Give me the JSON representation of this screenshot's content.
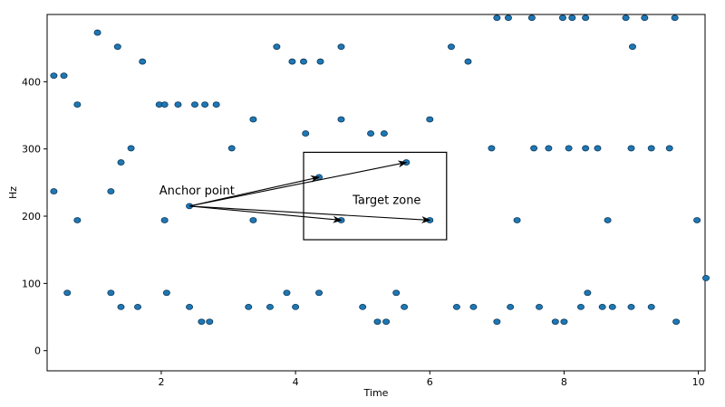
{
  "chart_data": {
    "type": "scatter",
    "title": "",
    "xlabel": "Time",
    "ylabel": "Hz",
    "xlim": [
      0.3,
      10.1
    ],
    "ylim": [
      -30,
      500
    ],
    "x_ticks": [
      2,
      4,
      6,
      8,
      10
    ],
    "y_ticks": [
      0,
      100,
      200,
      300,
      400
    ],
    "grid": false,
    "legend": "none",
    "point_color": "#1f77b4",
    "point_edge_color": "#0d3a5c",
    "points": [
      {
        "x": 0.4,
        "y": 409
      },
      {
        "x": 0.4,
        "y": 237
      },
      {
        "x": 0.55,
        "y": 409
      },
      {
        "x": 0.6,
        "y": 86
      },
      {
        "x": 0.75,
        "y": 366
      },
      {
        "x": 0.75,
        "y": 194
      },
      {
        "x": 1.05,
        "y": 473
      },
      {
        "x": 1.25,
        "y": 237
      },
      {
        "x": 1.25,
        "y": 86
      },
      {
        "x": 1.35,
        "y": 452
      },
      {
        "x": 1.4,
        "y": 280
      },
      {
        "x": 1.4,
        "y": 65
      },
      {
        "x": 1.55,
        "y": 301
      },
      {
        "x": 1.65,
        "y": 65
      },
      {
        "x": 1.72,
        "y": 430
      },
      {
        "x": 1.97,
        "y": 366
      },
      {
        "x": 2.05,
        "y": 366
      },
      {
        "x": 2.05,
        "y": 194
      },
      {
        "x": 2.08,
        "y": 86
      },
      {
        "x": 2.25,
        "y": 366
      },
      {
        "x": 2.42,
        "y": 215
      },
      {
        "x": 2.42,
        "y": 65
      },
      {
        "x": 2.5,
        "y": 366
      },
      {
        "x": 2.6,
        "y": 43
      },
      {
        "x": 2.65,
        "y": 366
      },
      {
        "x": 2.72,
        "y": 43
      },
      {
        "x": 2.82,
        "y": 366
      },
      {
        "x": 3.05,
        "y": 301
      },
      {
        "x": 3.3,
        "y": 65
      },
      {
        "x": 3.37,
        "y": 344
      },
      {
        "x": 3.37,
        "y": 194
      },
      {
        "x": 3.62,
        "y": 65
      },
      {
        "x": 3.72,
        "y": 452
      },
      {
        "x": 3.87,
        "y": 86
      },
      {
        "x": 3.95,
        "y": 430
      },
      {
        "x": 4.0,
        "y": 65
      },
      {
        "x": 4.12,
        "y": 430
      },
      {
        "x": 4.15,
        "y": 323
      },
      {
        "x": 4.35,
        "y": 258
      },
      {
        "x": 4.35,
        "y": 86
      },
      {
        "x": 4.37,
        "y": 430
      },
      {
        "x": 4.68,
        "y": 452
      },
      {
        "x": 4.68,
        "y": 344
      },
      {
        "x": 4.68,
        "y": 194
      },
      {
        "x": 5.0,
        "y": 65
      },
      {
        "x": 5.12,
        "y": 323
      },
      {
        "x": 5.22,
        "y": 43
      },
      {
        "x": 5.32,
        "y": 323
      },
      {
        "x": 5.35,
        "y": 43
      },
      {
        "x": 5.5,
        "y": 86
      },
      {
        "x": 5.62,
        "y": 65
      },
      {
        "x": 5.65,
        "y": 280
      },
      {
        "x": 6.0,
        "y": 344
      },
      {
        "x": 6.0,
        "y": 194
      },
      {
        "x": 6.32,
        "y": 452
      },
      {
        "x": 6.4,
        "y": 65
      },
      {
        "x": 6.57,
        "y": 430
      },
      {
        "x": 6.65,
        "y": 65
      },
      {
        "x": 6.92,
        "y": 301
      },
      {
        "x": 7.0,
        "y": 495
      },
      {
        "x": 7.0,
        "y": 43
      },
      {
        "x": 7.17,
        "y": 495
      },
      {
        "x": 7.2,
        "y": 65
      },
      {
        "x": 7.3,
        "y": 194
      },
      {
        "x": 7.52,
        "y": 495
      },
      {
        "x": 7.55,
        "y": 301
      },
      {
        "x": 7.63,
        "y": 65
      },
      {
        "x": 7.77,
        "y": 301
      },
      {
        "x": 7.87,
        "y": 43
      },
      {
        "x": 7.98,
        "y": 495
      },
      {
        "x": 8.0,
        "y": 43
      },
      {
        "x": 8.07,
        "y": 301
      },
      {
        "x": 8.12,
        "y": 495
      },
      {
        "x": 8.25,
        "y": 65
      },
      {
        "x": 8.32,
        "y": 495
      },
      {
        "x": 8.32,
        "y": 301
      },
      {
        "x": 8.35,
        "y": 86
      },
      {
        "x": 8.5,
        "y": 301
      },
      {
        "x": 8.57,
        "y": 65
      },
      {
        "x": 8.65,
        "y": 194
      },
      {
        "x": 8.72,
        "y": 65
      },
      {
        "x": 8.92,
        "y": 495
      },
      {
        "x": 9.0,
        "y": 301
      },
      {
        "x": 9.0,
        "y": 65
      },
      {
        "x": 9.02,
        "y": 452
      },
      {
        "x": 9.2,
        "y": 495
      },
      {
        "x": 9.3,
        "y": 301
      },
      {
        "x": 9.3,
        "y": 65
      },
      {
        "x": 9.57,
        "y": 301
      },
      {
        "x": 9.65,
        "y": 495
      },
      {
        "x": 9.67,
        "y": 43
      },
      {
        "x": 9.98,
        "y": 194
      },
      {
        "x": 10.12,
        "y": 108
      }
    ],
    "annotations": {
      "anchor_label": "Anchor point",
      "target_label": "Target zone",
      "anchor": {
        "x": 2.42,
        "y": 215
      },
      "arrow_targets": [
        {
          "x": 4.35,
          "y": 258
        },
        {
          "x": 5.65,
          "y": 280
        },
        {
          "x": 4.68,
          "y": 194
        },
        {
          "x": 6.0,
          "y": 194
        }
      ],
      "target_box": {
        "x0": 4.12,
        "x1": 6.25,
        "y0": 165,
        "y1": 295
      }
    }
  }
}
